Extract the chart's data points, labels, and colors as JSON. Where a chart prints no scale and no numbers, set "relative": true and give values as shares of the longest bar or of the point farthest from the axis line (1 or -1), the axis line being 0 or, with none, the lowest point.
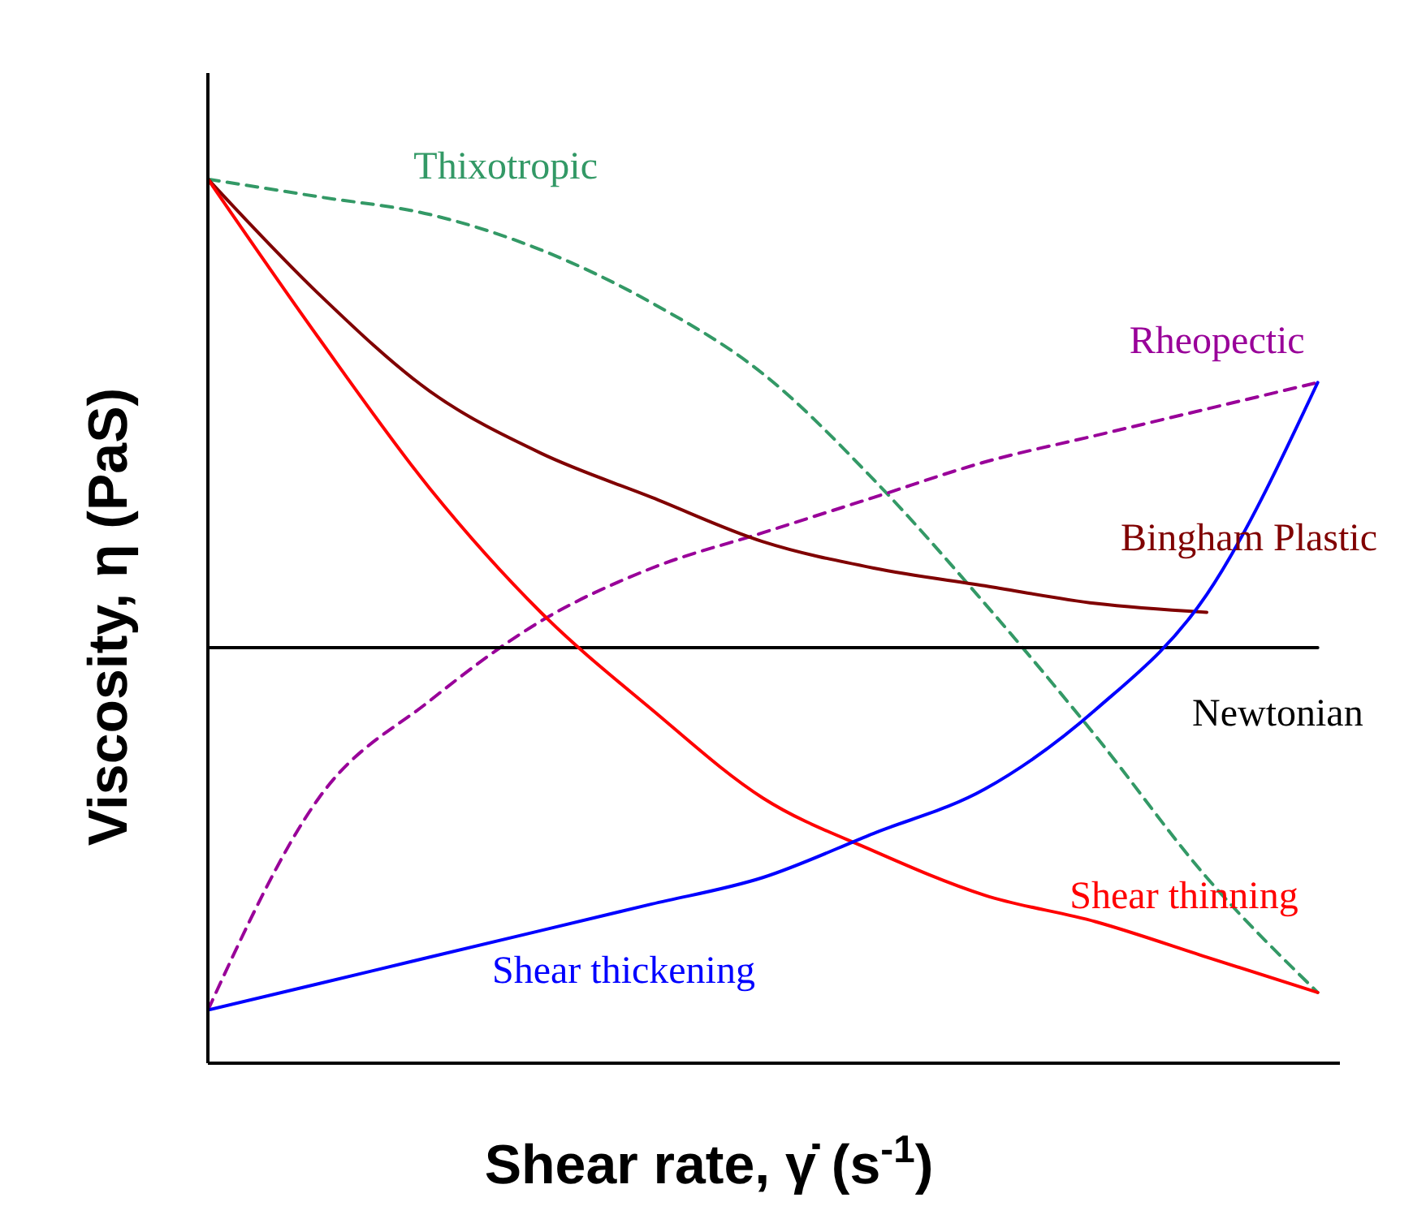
{
  "chart_data": {
    "type": "line",
    "relative": true,
    "xlabel": "Shear rate, γ̇ (s$^{-1}$)",
    "ylabel": "Viscosity, η (PaS)",
    "legend": false,
    "marker": "none",
    "grid": false,
    "tick_labels": false,
    "categories": [
      null,
      null,
      null,
      null,
      null,
      null,
      null,
      null,
      null,
      null,
      null
    ],
    "series": [
      {
        "name": "Thixotropic",
        "color": "#339966",
        "line_style": "dashed",
        "values": [
          1,
          0.98,
          0.96,
          0.92,
          0.86,
          0.78,
          0.66,
          0.52,
          0.37,
          0.21,
          0.08
        ]
      },
      {
        "name": "Rheopectic",
        "color": "#990099",
        "line_style": "dashed",
        "values": [
          0.06,
          0.3,
          0.41,
          0.5,
          0.56,
          0.6,
          0.64,
          0.68,
          0.71,
          0.74,
          0.77
        ]
      },
      {
        "name": "Bingham Plastic",
        "color": "#800000",
        "line_style": "solid",
        "values": [
          1,
          0.87,
          0.76,
          0.69,
          0.64,
          0.59,
          0.56,
          0.54,
          0.52,
          0.51,
          null
        ]
      },
      {
        "name": "Newtonian",
        "color": "#000000",
        "line_style": "solid",
        "values": [
          0.47,
          0.47,
          0.47,
          0.47,
          0.47,
          0.47,
          0.47,
          0.47,
          0.47,
          0.47,
          0.47
        ]
      },
      {
        "name": "Shear thinning",
        "color": "#ff0000",
        "line_style": "solid",
        "values": [
          1,
          0.82,
          0.65,
          0.51,
          0.4,
          0.3,
          0.24,
          0.19,
          0.16,
          0.12,
          0.08
        ]
      },
      {
        "name": "Shear thickening",
        "color": "#0000ff",
        "line_style": "solid",
        "values": [
          0.06,
          0.09,
          0.12,
          0.15,
          0.18,
          0.21,
          0.26,
          0.31,
          0.4,
          0.53,
          0.77
        ]
      }
    ]
  }
}
